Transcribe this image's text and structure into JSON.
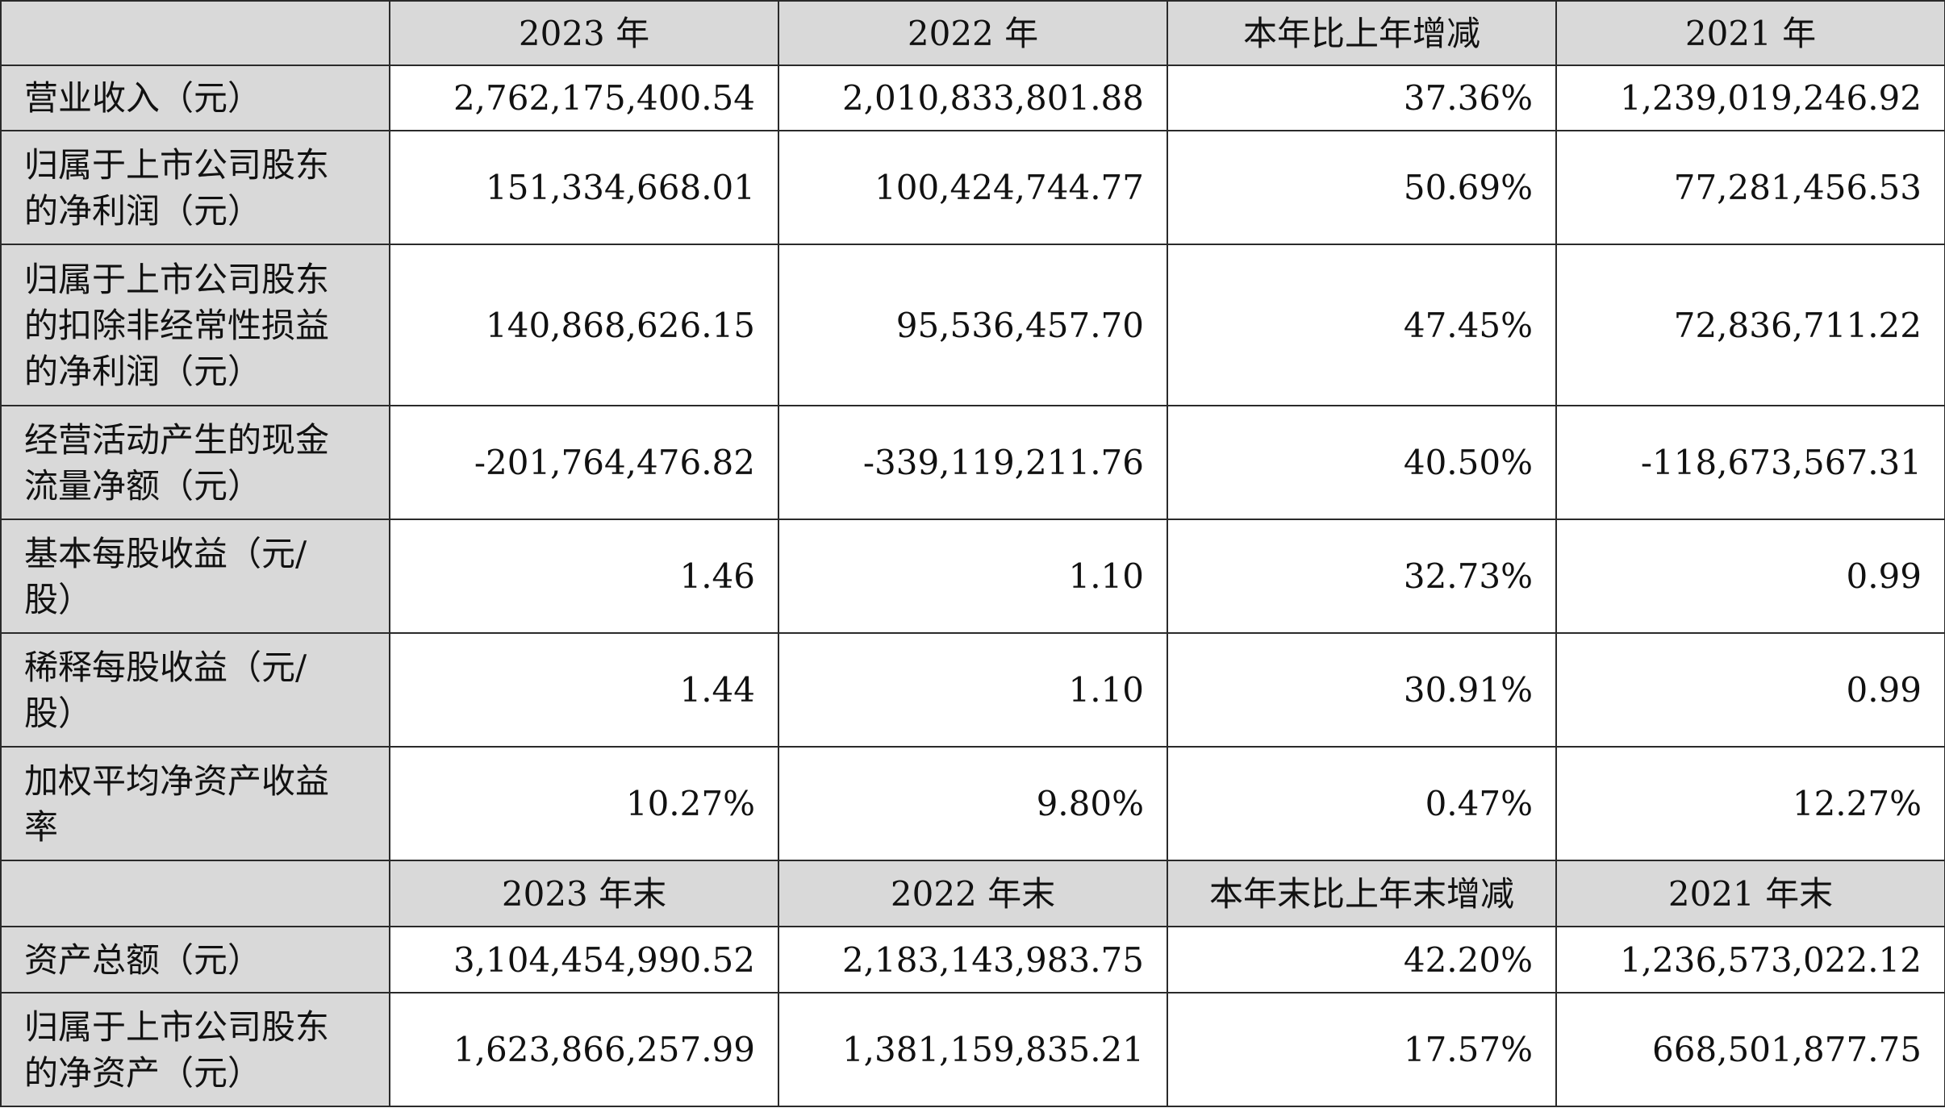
{
  "header1": {
    "cols": [
      "2023 年",
      "2022 年",
      "本年比上年增减",
      "2021 年"
    ]
  },
  "rows1": [
    {
      "label_lines": [
        "营业收入（元）"
      ],
      "values": [
        "2,762,175,400.54",
        "2,010,833,801.88",
        "37.36%",
        "1,239,019,246.92"
      ]
    },
    {
      "label_lines": [
        "归属于上市公司股东",
        "的净利润（元）"
      ],
      "values": [
        "151,334,668.01",
        "100,424,744.77",
        "50.69%",
        "77,281,456.53"
      ]
    },
    {
      "label_lines": [
        "归属于上市公司股东",
        "的扣除非经常性损益",
        "的净利润（元）"
      ],
      "values": [
        "140,868,626.15",
        "95,536,457.70",
        "47.45%",
        "72,836,711.22"
      ]
    },
    {
      "label_lines": [
        "经营活动产生的现金",
        "流量净额（元）"
      ],
      "values": [
        "-201,764,476.82",
        "-339,119,211.76",
        "40.50%",
        "-118,673,567.31"
      ]
    },
    {
      "label_lines": [
        "基本每股收益（元/",
        "股）"
      ],
      "values": [
        "1.46",
        "1.10",
        "32.73%",
        "0.99"
      ]
    },
    {
      "label_lines": [
        "稀释每股收益（元/",
        "股）"
      ],
      "values": [
        "1.44",
        "1.10",
        "30.91%",
        "0.99"
      ]
    },
    {
      "label_lines": [
        "加权平均净资产收益",
        "率"
      ],
      "values": [
        "10.27%",
        "9.80%",
        "0.47%",
        "12.27%"
      ]
    }
  ],
  "header2": {
    "cols": [
      "2023 年末",
      "2022 年末",
      "本年末比上年末增减",
      "2021 年末"
    ]
  },
  "rows2": [
    {
      "label_lines": [
        "资产总额（元）"
      ],
      "values": [
        "3,104,454,990.52",
        "2,183,143,983.75",
        "42.20%",
        "1,236,573,022.12"
      ]
    },
    {
      "label_lines": [
        "归属于上市公司股东",
        "的净资产（元）"
      ],
      "values": [
        "1,623,866,257.99",
        "1,381,159,835.21",
        "17.57%",
        "668,501,877.75"
      ]
    }
  ]
}
